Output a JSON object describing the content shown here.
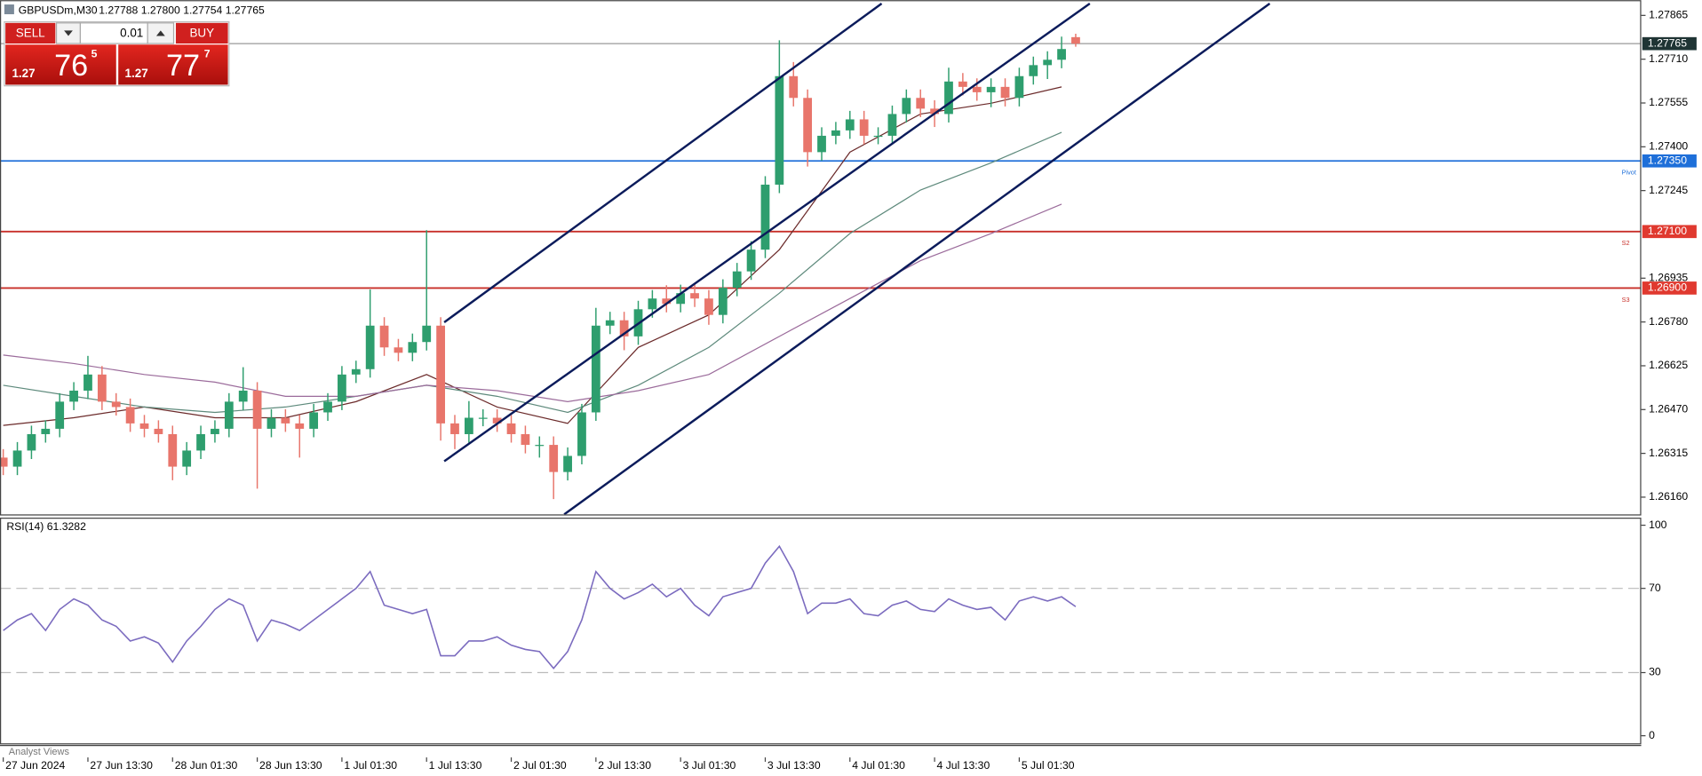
{
  "header": {
    "symbol": "GBPUSDm,M30",
    "ohlc": "1.27788 1.27800 1.27754 1.27765"
  },
  "trade_panel": {
    "sell": "SELL",
    "buy": "BUY",
    "lot": "0.01",
    "sell_price": {
      "big": "1.27",
      "pips": "76",
      "point": "5"
    },
    "buy_price": {
      "big": "1.27",
      "pips": "77",
      "point": "7"
    }
  },
  "indicator_label": "RSI(14) 61.3282",
  "footer": "Analyst Views",
  "chart_data": [
    {
      "type": "candlestick",
      "x": [
        0,
        4,
        8,
        12,
        16,
        20,
        24,
        28,
        32,
        36,
        40,
        44,
        48,
        52,
        56,
        60,
        64,
        68,
        72,
        76,
        80,
        84,
        88,
        92,
        96,
        100,
        104,
        108,
        112,
        116,
        120,
        124,
        128,
        132,
        136,
        140,
        144,
        148,
        152,
        156,
        160,
        164,
        168,
        172,
        176,
        180,
        184,
        188,
        192,
        196,
        200,
        204,
        208,
        212,
        216,
        220,
        224,
        228,
        232,
        236,
        240,
        244,
        248,
        252,
        256,
        260,
        264,
        268,
        272,
        276,
        280,
        284,
        288,
        292,
        296,
        300,
        304
      ],
      "open": [
        1.263,
        1.26268,
        1.26325,
        1.26383,
        1.26402,
        1.26498,
        1.26537,
        1.26594,
        1.26498,
        1.26479,
        1.26421,
        1.26402,
        1.26383,
        1.26268,
        1.26325,
        1.26383,
        1.26402,
        1.26498,
        1.26537,
        1.26402,
        1.26441,
        1.26421,
        1.26402,
        1.2646,
        1.26498,
        1.26594,
        1.26613,
        1.26767,
        1.2669,
        1.26671,
        1.26709,
        1.26767,
        1.26421,
        1.26383,
        1.26441,
        1.26441,
        1.26421,
        1.26383,
        1.26345,
        1.26345,
        1.26249,
        1.26306,
        1.2646,
        1.26767,
        1.26786,
        1.26729,
        1.26825,
        1.26863,
        1.26844,
        1.26882,
        1.26863,
        1.26805,
        1.26901,
        1.26959,
        1.27036,
        1.27266,
        1.2765,
        1.27573,
        1.27381,
        1.27439,
        1.27458,
        1.27497,
        1.27439,
        1.27439,
        1.27516,
        1.27573,
        1.27535,
        1.27516,
        1.27631,
        1.27612,
        1.27593,
        1.27612,
        1.27573,
        1.2765,
        1.27689,
        1.27708,
        1.27788
      ],
      "high": [
        1.2633,
        1.26355,
        1.26413,
        1.26432,
        1.26528,
        1.26567,
        1.2666,
        1.26624,
        1.26528,
        1.26509,
        1.26451,
        1.26432,
        1.26413,
        1.26355,
        1.26413,
        1.26432,
        1.26528,
        1.2662,
        1.26567,
        1.26471,
        1.26471,
        1.26451,
        1.2649,
        1.26528,
        1.26624,
        1.26643,
        1.26895,
        1.26797,
        1.2672,
        1.26739,
        1.27105,
        1.26797,
        1.26451,
        1.265,
        1.26471,
        1.26471,
        1.26451,
        1.26413,
        1.26375,
        1.26375,
        1.26336,
        1.2649,
        1.2683,
        1.26816,
        1.26816,
        1.26855,
        1.26893,
        1.2691,
        1.26912,
        1.26912,
        1.26893,
        1.26931,
        1.26989,
        1.27066,
        1.27296,
        1.27777,
        1.277,
        1.27603,
        1.27469,
        1.27488,
        1.27527,
        1.27527,
        1.27469,
        1.27546,
        1.27603,
        1.27603,
        1.27565,
        1.2768,
        1.27661,
        1.27642,
        1.27642,
        1.27642,
        1.2768,
        1.27719,
        1.27738,
        1.2779,
        1.278
      ],
      "low": [
        1.26238,
        1.26238,
        1.26295,
        1.26353,
        1.26372,
        1.26468,
        1.26507,
        1.26468,
        1.26449,
        1.26391,
        1.26372,
        1.26353,
        1.2622,
        1.26238,
        1.26295,
        1.26353,
        1.26372,
        1.26468,
        1.2619,
        1.26372,
        1.26391,
        1.263,
        1.26372,
        1.2643,
        1.26468,
        1.26564,
        1.26583,
        1.2666,
        1.26641,
        1.26641,
        1.26679,
        1.2636,
        1.2633,
        1.26353,
        1.26411,
        1.26391,
        1.26353,
        1.26315,
        1.263,
        1.26153,
        1.26219,
        1.26276,
        1.2643,
        1.26737,
        1.2668,
        1.26699,
        1.26795,
        1.26814,
        1.26814,
        1.26833,
        1.2677,
        1.26775,
        1.26871,
        1.26929,
        1.27006,
        1.27236,
        1.27543,
        1.2733,
        1.27351,
        1.27409,
        1.27428,
        1.27409,
        1.27409,
        1.27409,
        1.27486,
        1.27505,
        1.2747,
        1.27486,
        1.27582,
        1.27563,
        1.2754,
        1.27543,
        1.27543,
        1.2762,
        1.2764,
        1.27678,
        1.27754
      ],
      "close": [
        1.26268,
        1.26325,
        1.26383,
        1.26402,
        1.26498,
        1.26537,
        1.26594,
        1.26498,
        1.26479,
        1.26421,
        1.26402,
        1.26383,
        1.26268,
        1.26325,
        1.26383,
        1.26402,
        1.26498,
        1.26537,
        1.26402,
        1.26441,
        1.26421,
        1.26402,
        1.2646,
        1.26498,
        1.26594,
        1.26613,
        1.26767,
        1.2669,
        1.26671,
        1.26709,
        1.26767,
        1.26421,
        1.26383,
        1.26441,
        1.26441,
        1.26421,
        1.26383,
        1.26345,
        1.26345,
        1.26249,
        1.26306,
        1.2646,
        1.26767,
        1.26786,
        1.26729,
        1.26825,
        1.26863,
        1.26844,
        1.26882,
        1.26863,
        1.26805,
        1.26901,
        1.26959,
        1.27036,
        1.27266,
        1.2765,
        1.27573,
        1.27381,
        1.27439,
        1.27458,
        1.27497,
        1.27439,
        1.27439,
        1.27516,
        1.27573,
        1.27535,
        1.27516,
        1.27631,
        1.27612,
        1.27593,
        1.27612,
        1.27573,
        1.2765,
        1.27689,
        1.27708,
        1.27746,
        1.27765
      ],
      "up_color": "#2e9e6e",
      "down_color": "#e8756b",
      "series": [
        {
          "color": "#6b2a2a",
          "x": [
            0,
            20,
            40,
            60,
            80,
            100,
            120,
            140,
            160,
            180,
            200,
            220,
            240,
            260,
            280,
            300
          ],
          "values": [
            1.26414,
            1.26441,
            1.26479,
            1.26441,
            1.26441,
            1.26498,
            1.26594,
            1.26479,
            1.26421,
            1.2669,
            1.26805,
            1.27036,
            1.27381,
            1.27516,
            1.27554,
            1.27612
          ]
        },
        {
          "color": "#5e8a7c",
          "x": [
            0,
            20,
            40,
            60,
            80,
            100,
            120,
            140,
            160,
            180,
            200,
            220,
            240,
            260,
            280,
            300
          ],
          "values": [
            1.26556,
            1.26517,
            1.26479,
            1.2646,
            1.26479,
            1.26517,
            1.26556,
            1.26517,
            1.2646,
            1.26556,
            1.2669,
            1.26882,
            1.27093,
            1.27247,
            1.27343,
            1.27451
          ]
        },
        {
          "color": "#9b6b9b",
          "x": [
            0,
            20,
            40,
            60,
            80,
            100,
            120,
            140,
            160,
            180,
            200,
            220,
            240,
            260,
            280,
            300
          ],
          "values": [
            1.26663,
            1.26633,
            1.26594,
            1.26567,
            1.26517,
            1.26517,
            1.26556,
            1.26537,
            1.26498,
            1.26537,
            1.26594,
            1.26729,
            1.26863,
            1.26997,
            1.27093,
            1.27197
          ]
        }
      ],
      "trendlines": [
        {
          "color": "#0b1b5b",
          "x": [
            125,
            249
          ],
          "values": [
            1.26779,
            1.27907
          ]
        },
        {
          "color": "#0b1b5b",
          "x": [
            125,
            308
          ],
          "values": [
            1.26287,
            1.27907
          ]
        },
        {
          "color": "#0b1b5b",
          "x": [
            159,
            359
          ],
          "values": [
            1.26099,
            1.27907
          ]
        }
      ],
      "hlines": [
        {
          "value": 1.27765,
          "label": "1.27765",
          "color": "#9a9a9a",
          "label_color": "#1f3434"
        },
        {
          "value": 1.2735,
          "label": "1.27350",
          "name": "Pivot",
          "color": "#1e6fd9",
          "label_color": "#1e6fd9"
        },
        {
          "value": 1.271,
          "label": "1.27100",
          "name": "S2",
          "color": "#c8302a",
          "label_color": "#e0392f"
        },
        {
          "value": 1.269,
          "label": "1.26900",
          "name": "S3",
          "color": "#c8302a",
          "label_color": "#e0392f"
        }
      ],
      "xlim": [
        -0.92,
        464.3
      ],
      "xticks": [
        {
          "value": 0,
          "label": "27 Jun 2024"
        },
        {
          "value": 24,
          "label": "27 Jun 13:30"
        },
        {
          "value": 48,
          "label": "28 Jun 01:30"
        },
        {
          "value": 72,
          "label": "28 Jun 13:30"
        },
        {
          "value": 96,
          "label": "1 Jul 01:30"
        },
        {
          "value": 120,
          "label": "1 Jul 13:30"
        },
        {
          "value": 144,
          "label": "2 Jul 01:30"
        },
        {
          "value": 168,
          "label": "2 Jul 13:30"
        },
        {
          "value": 192,
          "label": "3 Jul 01:30"
        },
        {
          "value": 216,
          "label": "3 Jul 13:30"
        },
        {
          "value": 240,
          "label": "4 Jul 01:30"
        },
        {
          "value": 264,
          "label": "4 Jul 13:30"
        },
        {
          "value": 288,
          "label": "5 Jul 01:30"
        }
      ],
      "ylim": [
        1.26099,
        1.27919
      ],
      "yticks": [
        1.27865,
        {
          "value": 1.2771,
          "label": "1.27710"
        },
        1.27555,
        {
          "value": 1.274,
          "label": "1.27400"
        },
        1.27245,
        1.26935,
        {
          "value": 1.2678,
          "label": "1.26780"
        },
        1.26625,
        {
          "value": 1.2647,
          "label": "1.26470"
        },
        1.26315,
        {
          "value": 1.2616,
          "label": "1.26160"
        }
      ]
    },
    {
      "type": "line",
      "color": "#7b6bbf",
      "x": [
        0,
        4,
        8,
        12,
        16,
        20,
        24,
        28,
        32,
        36,
        40,
        44,
        48,
        52,
        56,
        60,
        64,
        68,
        72,
        76,
        80,
        84,
        88,
        92,
        96,
        100,
        104,
        108,
        112,
        116,
        120,
        124,
        128,
        132,
        136,
        140,
        144,
        148,
        152,
        156,
        160,
        164,
        168,
        172,
        176,
        180,
        184,
        188,
        192,
        196,
        200,
        204,
        208,
        212,
        216,
        220,
        224,
        228,
        232,
        236,
        240,
        244,
        248,
        252,
        256,
        260,
        264,
        268,
        272,
        276,
        280,
        284,
        288,
        292,
        296,
        300,
        304
      ],
      "values": [
        50,
        55,
        58,
        50,
        60,
        65,
        62,
        55,
        52,
        45,
        47,
        44,
        35,
        45,
        52,
        60,
        65,
        62,
        45,
        55,
        53,
        50,
        55,
        60,
        65,
        70,
        78,
        62,
        60,
        58,
        60,
        38,
        38,
        45,
        45,
        47,
        43,
        41,
        40,
        32,
        40,
        55,
        78,
        70,
        65,
        68,
        72,
        66,
        70,
        62,
        57,
        66,
        68,
        70,
        82,
        90,
        78,
        58,
        63,
        63,
        65,
        58,
        57,
        62,
        64,
        60,
        59,
        65,
        62,
        60,
        61,
        55,
        64,
        66,
        64,
        66,
        61.3282
      ],
      "levels": [
        70,
        30
      ],
      "xlim": [
        -0.92,
        464.3
      ],
      "ylim": [
        -3.6,
        103.6
      ],
      "yticks": [
        100,
        70,
        30,
        0
      ]
    }
  ]
}
